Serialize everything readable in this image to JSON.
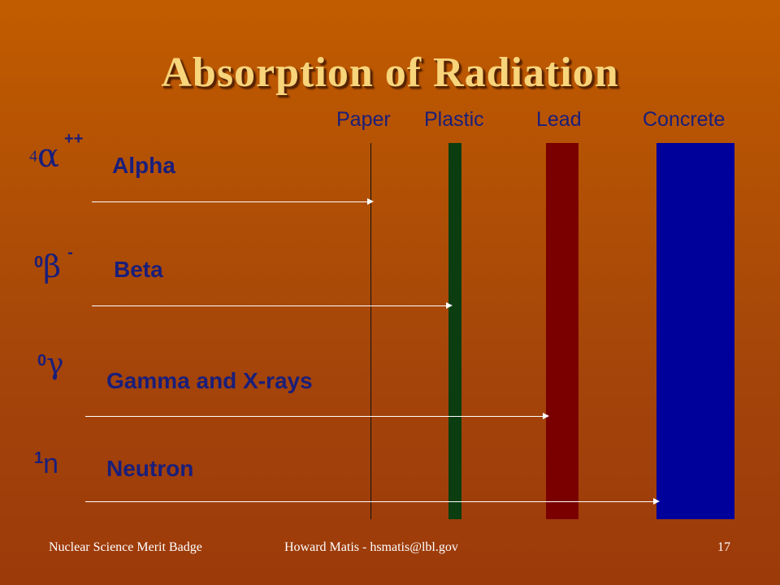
{
  "title": "Absorption of Radiation",
  "materials": {
    "paper": "Paper",
    "plastic": "Plastic",
    "lead": "Lead",
    "concrete": "Concrete"
  },
  "colors": {
    "plastic": "#0b3d10",
    "lead": "#7a0000",
    "concrete": "#00009a",
    "label_text": "#1a1e7a",
    "title": "#f8d47a"
  },
  "radiation": [
    {
      "name": "Alpha",
      "sym_sup": "4",
      "sym_glyph": "α",
      "sym_charge": "++",
      "stops_at": "Paper"
    },
    {
      "name": "Beta",
      "sym_sup": "0",
      "sym_glyph": "β",
      "sym_charge": "-",
      "stops_at": "Plastic"
    },
    {
      "name": "Gamma and X-rays",
      "sym_sup": "0",
      "sym_glyph": "γ",
      "sym_charge": "",
      "stops_at": "Lead"
    },
    {
      "name": "Neutron",
      "sym_sup": "1",
      "sym_glyph": "n",
      "sym_charge": "",
      "stops_at": "Concrete"
    }
  ],
  "footer": {
    "left": "Nuclear Science Merit Badge",
    "center": "Howard Matis - hsmatis@lbl.gov",
    "page": "17"
  }
}
